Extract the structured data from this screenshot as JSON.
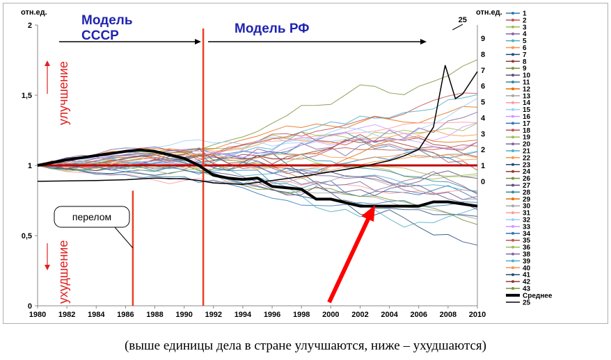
{
  "chart_data": {
    "type": "line",
    "title_left": "Модель СССР",
    "title_right": "Модель РФ",
    "left_axis_unit": "отн.ед.",
    "right_axis_unit": "отн.ед.",
    "label_improve": "улучшение",
    "label_worsen": "ухудшение",
    "callout": "перелом",
    "top_label": "25",
    "x_ticks": [
      "1980",
      "1982",
      "1984",
      "1986",
      "1988",
      "1990",
      "1992",
      "1994",
      "1996",
      "1998",
      "2000",
      "2002",
      "2004",
      "2006",
      "2008",
      "2010"
    ],
    "y_ticks": [
      "0",
      "0,5",
      "1",
      "1,5",
      "2"
    ],
    "right_ticks": [
      "0",
      "1",
      "2",
      "3",
      "4",
      "5",
      "6",
      "7",
      "8",
      "9"
    ],
    "ylim": [
      0,
      2
    ],
    "right_ylim": [
      -1,
      9
    ],
    "xlim": [
      1980,
      2010
    ],
    "reference_level": 1,
    "break_years": [
      1986.5,
      1991.3
    ],
    "legend_entries": [
      "1",
      "2",
      "3",
      "4",
      "5",
      "6",
      "7",
      "8",
      "9",
      "10",
      "11",
      "12",
      "13",
      "14",
      "15",
      "16",
      "17",
      "18",
      "19",
      "20",
      "21",
      "22",
      "23",
      "24",
      "26",
      "27",
      "28",
      "29",
      "30",
      "31",
      "32",
      "33",
      "34",
      "35",
      "36",
      "38",
      "39",
      "40",
      "41",
      "42",
      "43",
      "Среднее",
      "25"
    ],
    "average_series": {
      "name": "Среднее",
      "x": [
        1980,
        1982,
        1984,
        1986,
        1987,
        1988,
        1990,
        1991,
        1992,
        1993,
        1994,
        1995,
        1996,
        1998,
        1999,
        2000,
        2002,
        2004,
        2006,
        2007,
        2008,
        2010
      ],
      "y": [
        1.0,
        1.04,
        1.07,
        1.1,
        1.11,
        1.1,
        1.05,
        1.0,
        0.93,
        0.91,
        0.9,
        0.91,
        0.85,
        0.83,
        0.76,
        0.76,
        0.71,
        0.71,
        0.71,
        0.74,
        0.74,
        0.71
      ]
    },
    "series_25": {
      "name": "25",
      "x": [
        1980,
        1984,
        1986,
        1988,
        1990,
        1991,
        1992,
        1994,
        1996,
        1998,
        2000,
        2002,
        2004,
        2005,
        2006,
        2007,
        2007.8,
        2008.5,
        2009,
        2010
      ],
      "y": [
        0.0,
        0.05,
        0.1,
        0.2,
        0.15,
        0.05,
        -0.1,
        -0.2,
        0.05,
        0.3,
        0.6,
        0.9,
        1.3,
        1.6,
        2.0,
        3.4,
        7.3,
        5.2,
        5.5,
        6.9
      ]
    }
  },
  "caption": "(выше единицы дела в стране улучшаются, ниже – ухудшаются)",
  "colors": {
    "average": "#000000",
    "reference_line": "#c00000",
    "break_line": "#e84020",
    "arrow": "#ff0000",
    "title": "#1f24b0",
    "red_labels": "#e02020"
  }
}
